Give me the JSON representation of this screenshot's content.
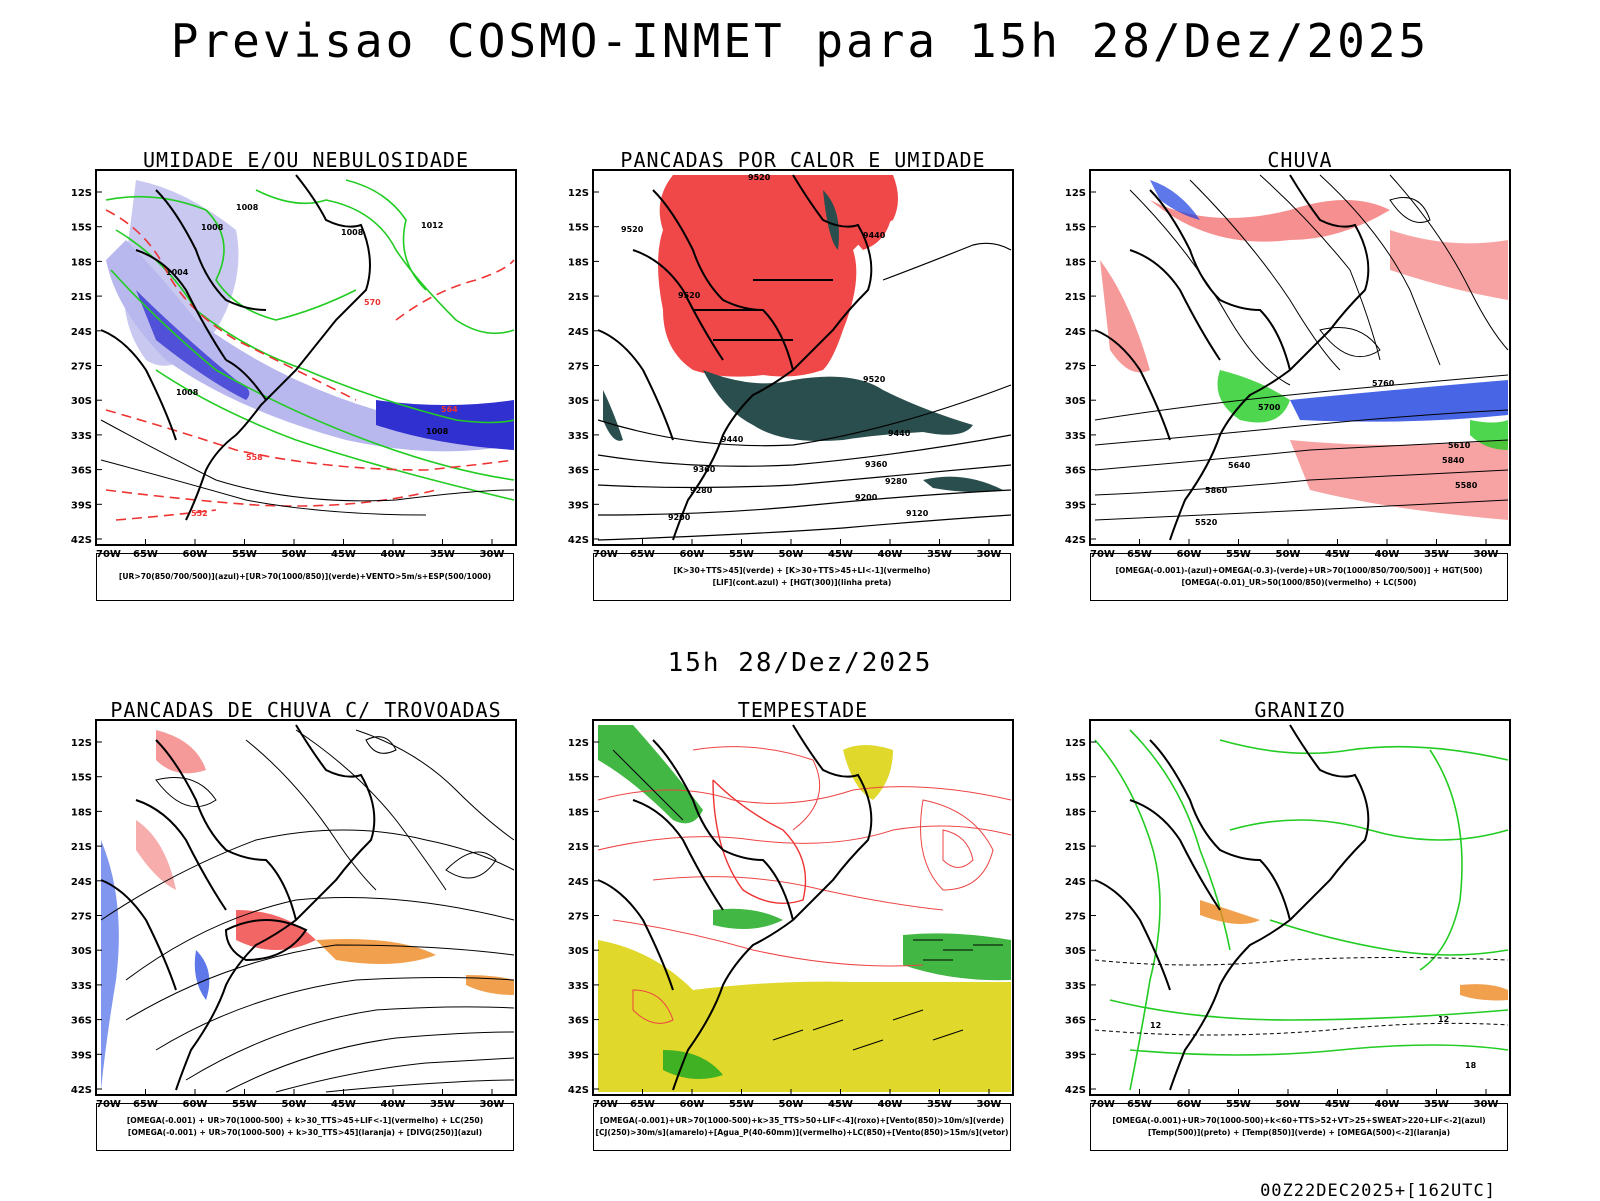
{
  "title": "Previsao COSMO-INMET  para 15h 28/Dez/2025",
  "mid_time": "15h 28/Dez/2025",
  "footer_run": "00Z22DEC2025+[162UTC]",
  "axes": {
    "lat_labels": [
      "12S",
      "15S",
      "18S",
      "21S",
      "24S",
      "27S",
      "30S",
      "33S",
      "36S",
      "39S",
      "42S"
    ],
    "lon_labels": [
      "70W",
      "65W",
      "60W",
      "55W",
      "50W",
      "45W",
      "40W",
      "35W",
      "30W"
    ]
  },
  "panels": [
    {
      "id": "umidade",
      "title": "UMIDADE E/OU NEBULOSIDADE",
      "legend": [
        "[UR>70(850/700/500)](azul)+[UR>70(1000/850)](verde)+VENTO>5m/s+ESP(500/1000)"
      ],
      "contour_labels": [
        "1008",
        "1008",
        "1008",
        "1012",
        "1004",
        "1008",
        "570",
        "564",
        "558",
        "552",
        "1008"
      ],
      "colors": {
        "fill_a": "#c8c8f0",
        "fill_b": "#3030d0",
        "line_a": "#22cc22",
        "line_b": "#ee3333"
      }
    },
    {
      "id": "pancadas",
      "title": "PANCADAS POR CALOR E UMIDADE",
      "legend": [
        "[K>30+TTS>45](verde) + [K>30+TTS>45+LI<-1](vermelho)",
        "[LIF](cont.azul) + [HGT(300)](linha preta)"
      ],
      "contour_labels": [
        "9520",
        "9520",
        "9440",
        "9520",
        "9520",
        "9440",
        "9440",
        "9360",
        "9360",
        "9280",
        "9280",
        "9200",
        "9200",
        "9120"
      ],
      "colors": {
        "fill_a": "#f04848",
        "fill_b": "#2a4d4d"
      }
    },
    {
      "id": "chuva",
      "title": "CHUVA",
      "legend": [
        "[OMEGA(-0.001)-(azul)+OMEGA(-0.3)-(verde)+UR>70(1000/850/700/500)] + HGT(500)",
        "[OMEGA(-0.01)_UR>50(1000/850)(vermelho) + LC(500)"
      ],
      "contour_labels": [
        "5760",
        "5700",
        "5640",
        "5610",
        "5580",
        "5520",
        "5840",
        "5860"
      ],
      "colors": {
        "fill_a": "#ee3333",
        "fill_b": "#1a3fe0",
        "line_a": "#22cc22"
      }
    },
    {
      "id": "trovoadas",
      "title": "PANCADAS DE CHUVA C/ TROVOADAS",
      "legend": [
        "[OMEGA(-0.001) + UR>70(1000-500) + k>30_TTS>45+LIF<-1](vermelho) + LC(250)",
        "[OMEGA(-0.001) + UR>70(1000-500) + k>30_TTS>45](laranja) + [DIVG(250)](azul)"
      ],
      "contour_labels": [],
      "colors": {
        "fill_a": "#ee3333",
        "fill_b": "#1a3fe0",
        "line_a": "#ee8822"
      }
    },
    {
      "id": "tempestade",
      "title": "TEMPESTADE",
      "legend": [
        "[OMEGA(-0.001)+UR>70(1000-500)+k>35_TTS>50+LIF<-4](roxo)+[Vento(850)>10m/s](verde)",
        "[CJ(250)>30m/s](amarelo)+[Agua_P(40-60mm)](vermelho)+LC(850)+[Vento(850)>15m/s](vetor)"
      ],
      "contour_labels": [],
      "colors": {
        "fill_a": "#e0d82a",
        "fill_b": "#22aa22",
        "line_a": "#ee4444"
      }
    },
    {
      "id": "granizo",
      "title": "GRANIZO",
      "legend": [
        "[OMEGA(-0.001)+UR>70(1000-500)+k<60+TTS>52+VT>25+SWEAT>220+LIF<-2](azul)",
        "[Temp(500)](preto) + [Temp(850)](verde) + [OMEGA(500)<-2](laranja)"
      ],
      "contour_labels": [
        "12",
        "12",
        "18"
      ],
      "colors": {
        "line_a": "#22cc22",
        "fill_a": "#ee8822"
      }
    }
  ]
}
